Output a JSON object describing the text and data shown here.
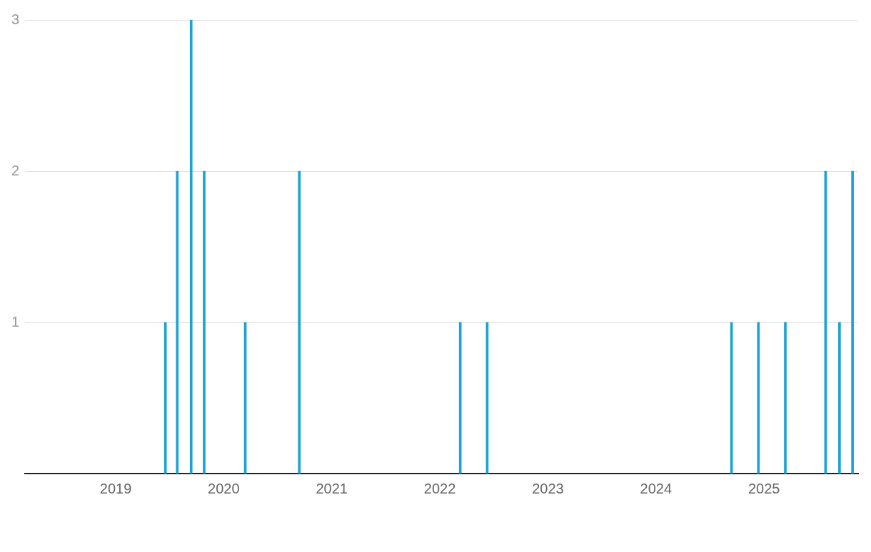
{
  "chart_data": {
    "type": "bar",
    "x": [
      "2019-06-18",
      "2019-07-28",
      "2019-09-13",
      "2019-10-27",
      "2020-03-14",
      "2020-09-13",
      "2022-03-11",
      "2022-06-10",
      "2024-09-13",
      "2024-12-13",
      "2025-03-14",
      "2025-07-28",
      "2025-09-13",
      "2025-10-27"
    ],
    "values": [
      1,
      2,
      3,
      2,
      1,
      2,
      1,
      1,
      1,
      1,
      1,
      2,
      1,
      2
    ],
    "color": "#1aa3d4",
    "xlim": [
      "2018-03-01",
      "2025-11-15"
    ],
    "xticks": [
      "2019",
      "2020",
      "2021",
      "2022",
      "2023",
      "2024",
      "2025"
    ],
    "ylim": [
      0,
      3
    ],
    "yticks": [
      1,
      2,
      3
    ],
    "grid": "y",
    "legend": false
  }
}
